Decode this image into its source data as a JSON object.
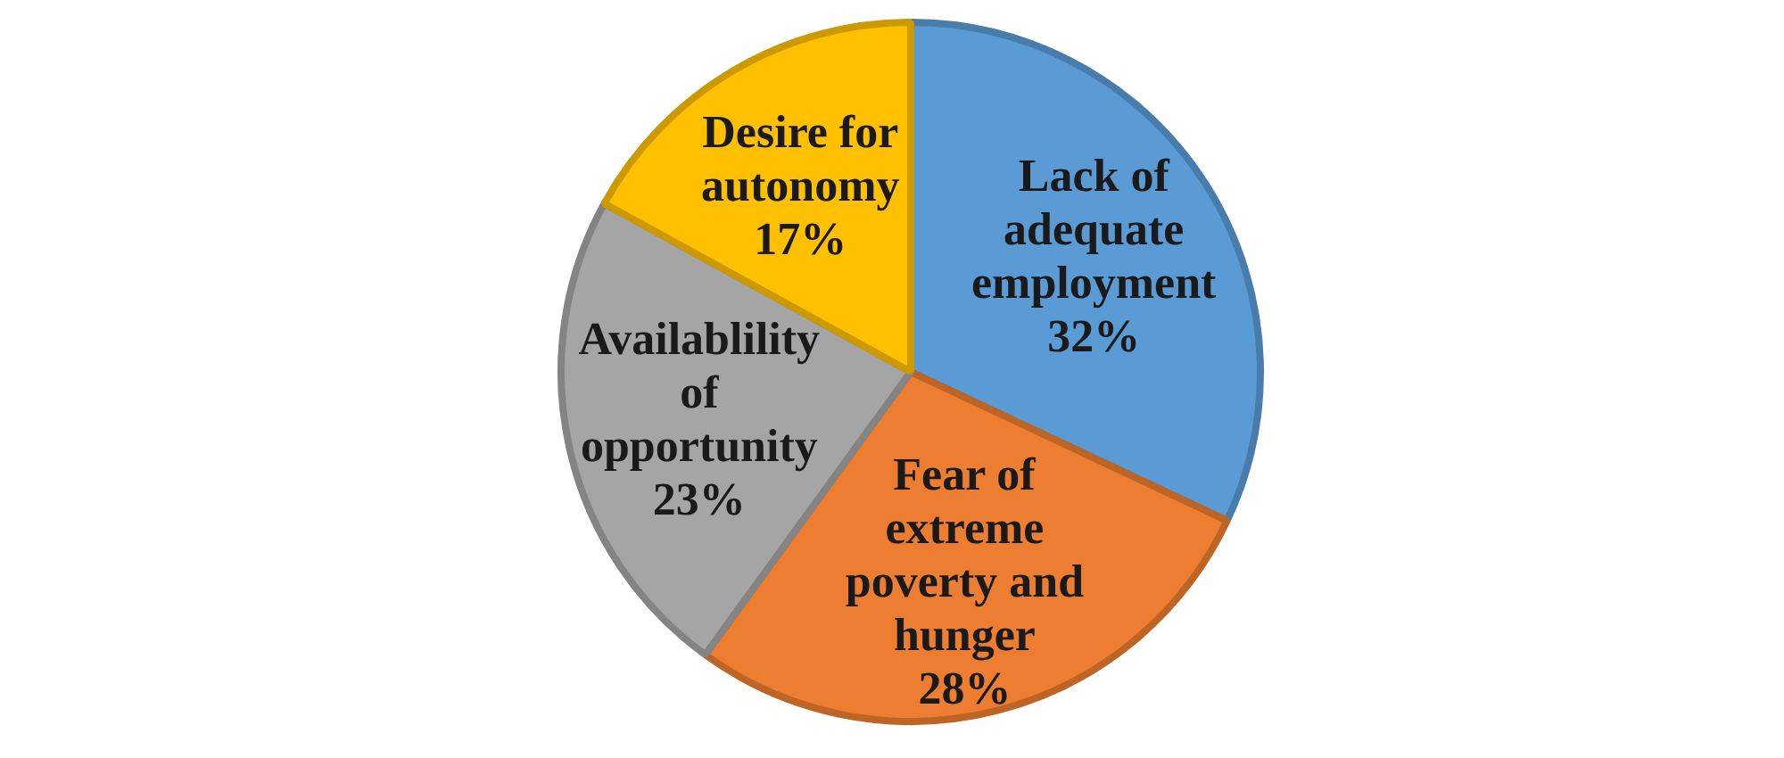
{
  "chart_data": {
    "type": "pie",
    "categories": [
      "Lack of adequate employment",
      "Fear of extreme poverty and hunger",
      "Availablility of opportunity",
      "Desire for autonomy"
    ],
    "values": [
      32,
      28,
      23,
      17
    ],
    "colors": [
      "#5b9bd5",
      "#ed7d31",
      "#a5a5a5",
      "#ffc000"
    ],
    "value_labels": [
      "32%",
      "28%",
      "23%",
      "17%"
    ]
  }
}
